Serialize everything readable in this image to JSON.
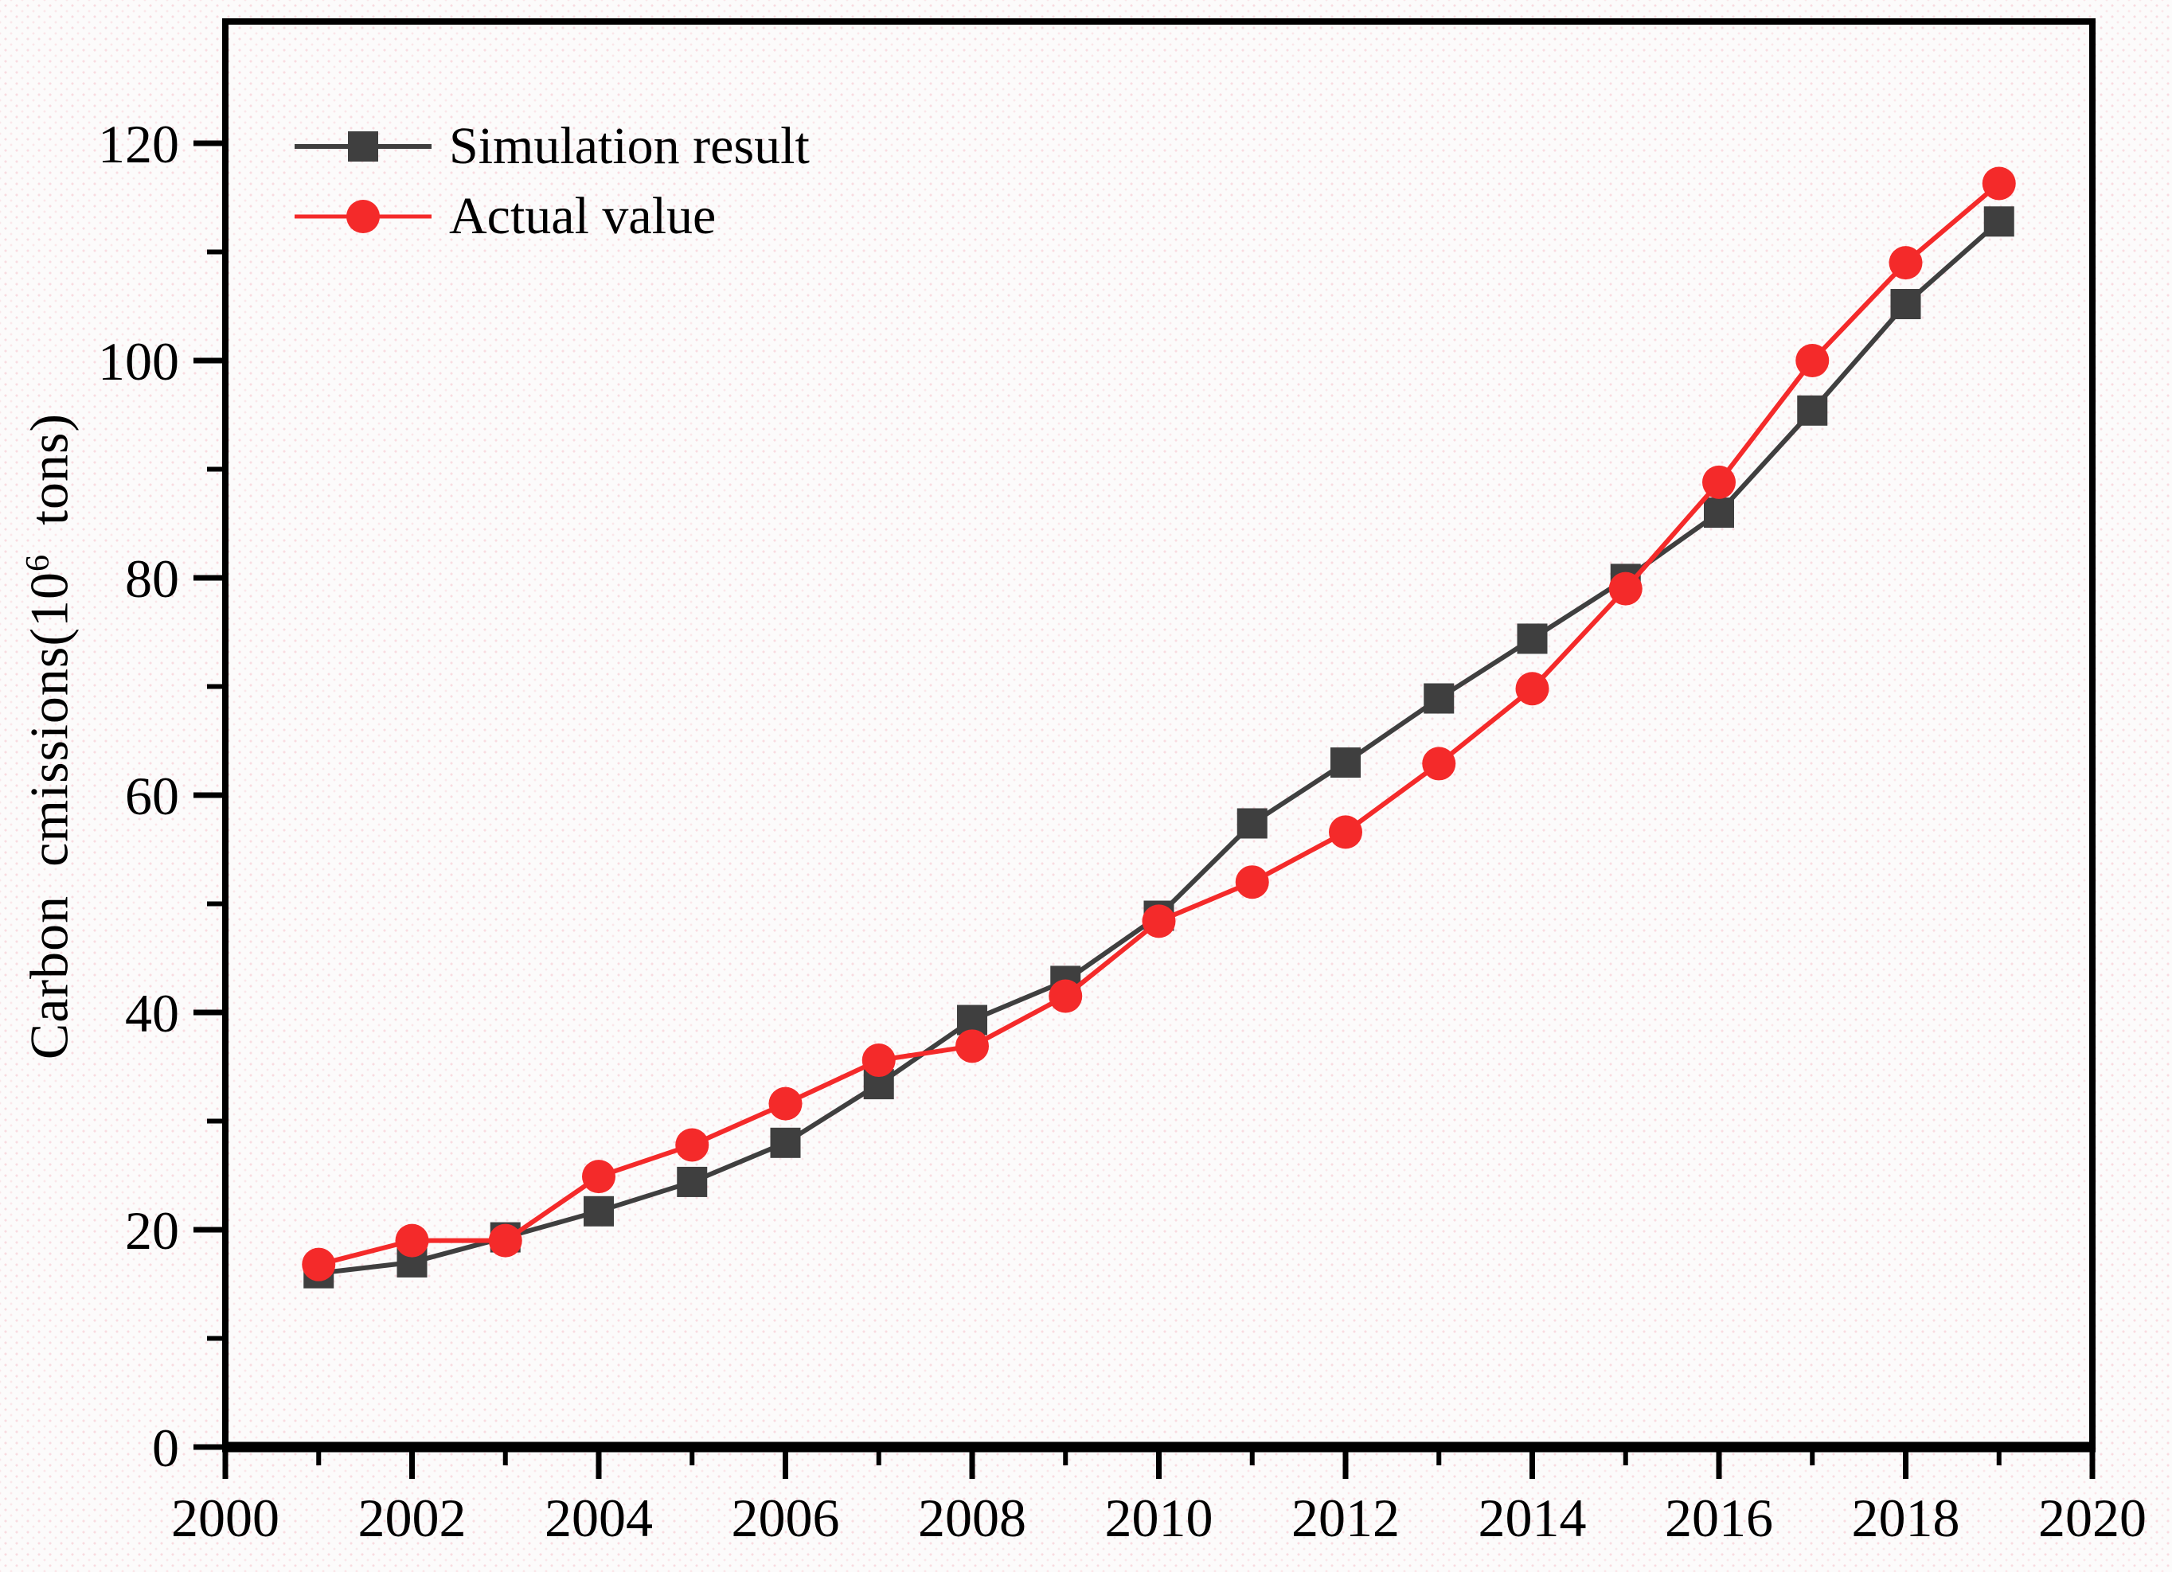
{
  "chart_data": {
    "type": "line",
    "title": "",
    "xlabel": "",
    "ylabel": "Carbon  cmissions(10⁶  tons)",
    "ylabel_prefix": "Carbon  cmissions(10",
    "ylabel_sup": "6",
    "ylabel_suffix": "  tons)",
    "xlim": [
      2000,
      2020
    ],
    "ylim": [
      0,
      120
    ],
    "x_major_ticks": [
      2000,
      2002,
      2004,
      2006,
      2008,
      2010,
      2012,
      2014,
      2016,
      2018,
      2020
    ],
    "x_minor_ticks": [
      2001,
      2003,
      2005,
      2007,
      2009,
      2011,
      2013,
      2015,
      2017,
      2019
    ],
    "y_major_ticks": [
      0,
      20,
      40,
      60,
      80,
      100,
      120
    ],
    "y_minor_ticks": [
      10,
      30,
      50,
      70,
      90,
      110
    ],
    "grid": false,
    "legend_position": "top-left",
    "x": [
      2001,
      2002,
      2003,
      2004,
      2005,
      2006,
      2007,
      2008,
      2009,
      2010,
      2011,
      2012,
      2013,
      2014,
      2015,
      2016,
      2017,
      2018,
      2019
    ],
    "series": [
      {
        "name": "Simulation result",
        "marker": "square",
        "color": "#3f3f3f",
        "values": [
          16.0,
          17.0,
          19.3,
          21.7,
          24.4,
          28.0,
          33.4,
          39.3,
          42.9,
          48.9,
          57.4,
          63.0,
          68.9,
          74.4,
          79.9,
          86.0,
          95.4,
          105.2,
          112.8
        ]
      },
      {
        "name": "Actual value",
        "marker": "circle",
        "color": "#f42a2a",
        "values": [
          16.8,
          19.0,
          19.0,
          24.9,
          27.8,
          31.6,
          35.6,
          36.9,
          41.5,
          48.4,
          52.0,
          56.6,
          62.9,
          69.8,
          79.0,
          88.8,
          100.0,
          109.0,
          116.3
        ]
      }
    ],
    "axis_color": "#000000",
    "tick_label_color": "#000000"
  }
}
